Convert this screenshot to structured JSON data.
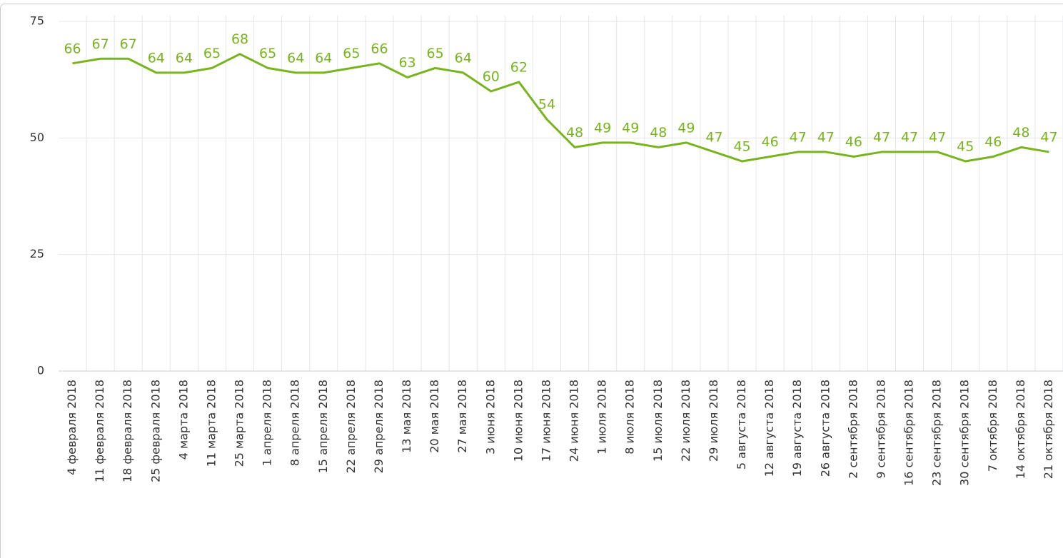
{
  "chart_data": {
    "type": "line",
    "categories": [
      "4 февраля 2018",
      "11 февраля 2018",
      "18 февраля 2018",
      "25 февраля 2018",
      "4 марта 2018",
      "11 марта 2018",
      "25 марта 2018",
      "1 апреля 2018",
      "8 апреля 2018",
      "15 апреля 2018",
      "22 апреля 2018",
      "29 апреля 2018",
      "13 мая 2018",
      "20 мая 2018",
      "27 мая 2018",
      "3 июня 2018",
      "10 июня 2018",
      "17 июня 2018",
      "24 июня 2018",
      "1 июля 2018",
      "8 июля 2018",
      "15 июля 2018",
      "22 июля 2018",
      "29 июля 2018",
      "5 августа 2018",
      "12 августа 2018",
      "19 августа 2018",
      "26 августа 2018",
      "2 сентября 2018",
      "9 сентября 2018",
      "16 сентября 2018",
      "23 сентября 2018",
      "30 сентября 2018",
      "7 октября 2018",
      "14 октября 2018",
      "21 октября 2018"
    ],
    "series": [
      {
        "color": "#78b41e",
        "values": [
          66,
          67,
          67,
          64,
          64,
          65,
          68,
          65,
          64,
          64,
          65,
          66,
          63,
          65,
          64,
          60,
          62,
          54,
          48,
          49,
          49,
          48,
          49,
          47,
          45,
          46,
          47,
          47,
          46,
          47,
          47,
          47,
          45,
          46,
          48,
          47
        ]
      }
    ],
    "ylim": [
      0,
      75
    ],
    "yticks": [
      0,
      25,
      50,
      75
    ],
    "grid": true
  }
}
